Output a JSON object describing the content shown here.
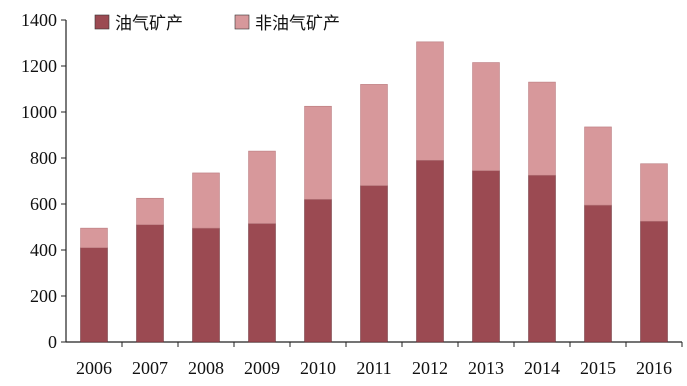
{
  "chart_data": {
    "type": "bar",
    "stacked": true,
    "title": "",
    "xlabel": "",
    "ylabel": "",
    "categories": [
      "2006",
      "2007",
      "2008",
      "2009",
      "2010",
      "2011",
      "2012",
      "2013",
      "2014",
      "2015",
      "2016"
    ],
    "series": [
      {
        "name": "油气矿产",
        "color": "#9b4a52",
        "values": [
          410,
          510,
          495,
          515,
          620,
          680,
          790,
          745,
          725,
          595,
          525
        ]
      },
      {
        "name": "非油气矿产",
        "color": "#d7989b",
        "values": [
          85,
          115,
          240,
          315,
          405,
          440,
          515,
          470,
          405,
          340,
          250
        ]
      }
    ],
    "ylim": [
      0,
      1400
    ],
    "yticks": [
      0,
      200,
      400,
      600,
      800,
      1000,
      1200,
      1400
    ],
    "grid": false,
    "legend_position": "top-left"
  }
}
